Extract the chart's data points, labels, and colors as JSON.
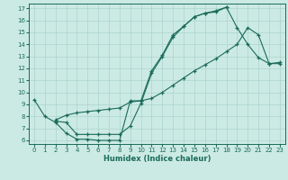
{
  "xlabel": "Humidex (Indice chaleur)",
  "bg_color": "#cceae4",
  "grid_color": "#aad4cc",
  "line_color": "#1a6b5a",
  "xlim": [
    -0.5,
    23.5
  ],
  "ylim": [
    5.7,
    17.4
  ],
  "xticks": [
    0,
    1,
    2,
    3,
    4,
    5,
    6,
    7,
    8,
    9,
    10,
    11,
    12,
    13,
    14,
    15,
    16,
    17,
    18,
    19,
    20,
    21,
    22,
    23
  ],
  "yticks": [
    6,
    7,
    8,
    9,
    10,
    11,
    12,
    13,
    14,
    15,
    16,
    17
  ],
  "line1_x": [
    0,
    1,
    2,
    3,
    4,
    5,
    6,
    7,
    8,
    9,
    10,
    11,
    12,
    13,
    14,
    15,
    16,
    17,
    18,
    19,
    20,
    21,
    22,
    23
  ],
  "line1_y": [
    9.4,
    8.0,
    7.5,
    6.6,
    6.1,
    6.1,
    6.0,
    6.0,
    6.0,
    9.3,
    9.3,
    11.8,
    13.1,
    14.8,
    15.5,
    16.3,
    16.6,
    16.8,
    17.1,
    15.4,
    14.0,
    12.9,
    12.4,
    12.4
  ],
  "line2_x": [
    2,
    3,
    4,
    5,
    6,
    7,
    8,
    9,
    10,
    11,
    12,
    13,
    14,
    15,
    16,
    17,
    18,
    19,
    20,
    21,
    22,
    23
  ],
  "line2_y": [
    7.7,
    8.1,
    8.3,
    8.4,
    8.5,
    8.6,
    8.7,
    9.2,
    9.3,
    9.5,
    10.0,
    10.6,
    11.2,
    11.8,
    12.3,
    12.8,
    13.4,
    14.0,
    15.4,
    14.8,
    12.4,
    12.5
  ],
  "line3_x": [
    2,
    3,
    4,
    5,
    6,
    7,
    8,
    9,
    10,
    11,
    12,
    13,
    14,
    15,
    16,
    17,
    18
  ],
  "line3_y": [
    7.6,
    7.5,
    6.5,
    6.5,
    6.5,
    6.5,
    6.5,
    7.2,
    9.1,
    11.6,
    13.0,
    14.6,
    15.5,
    16.3,
    16.6,
    16.7,
    17.1
  ]
}
